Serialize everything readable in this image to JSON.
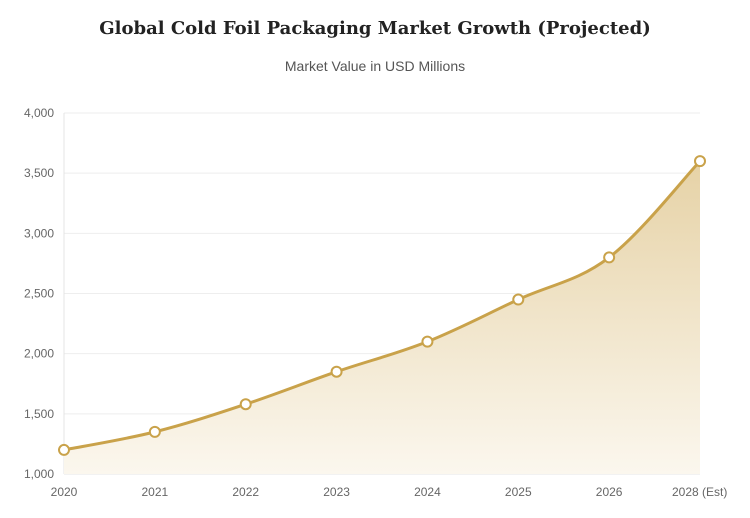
{
  "chart_data": {
    "type": "area",
    "title": "Global Cold Foil Packaging Market Growth (Projected)",
    "subtitle": "Market Value in USD Millions",
    "categories": [
      "2020",
      "2021",
      "2022",
      "2023",
      "2024",
      "2025",
      "2026",
      "2028 (Est)"
    ],
    "series": [
      {
        "name": "Market Value",
        "values": [
          1200,
          1350,
          1580,
          1850,
          2100,
          2450,
          2800,
          3600
        ]
      }
    ],
    "ylim": [
      1000,
      4000
    ],
    "yticks": [
      1000,
      1500,
      2000,
      2500,
      3000,
      3500,
      4000
    ],
    "ytick_labels": [
      "1,000",
      "1,500",
      "2,000",
      "2,500",
      "3,000",
      "3,500",
      "4,000"
    ],
    "xlabel": "",
    "ylabel": "",
    "grid": true,
    "legend": "none",
    "colors": {
      "line": "#C9A24A",
      "fill_top": "#E6D2A6",
      "fill_bottom": "#FBF7EE",
      "grid": "#EEEEEE",
      "point_fill": "#FFFFFF"
    }
  }
}
